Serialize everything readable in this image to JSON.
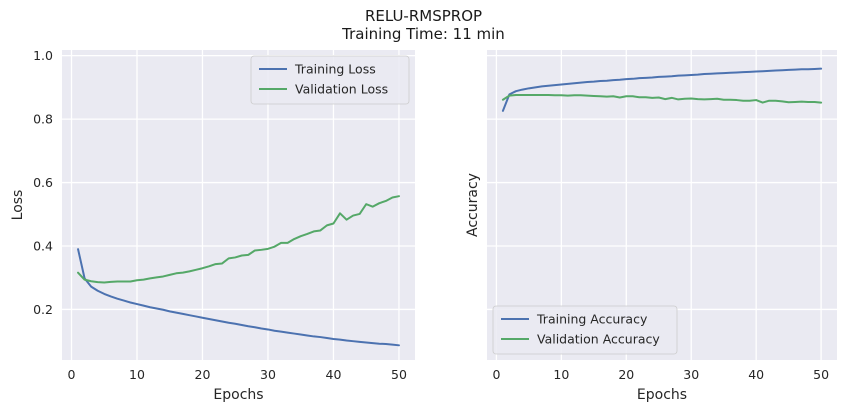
{
  "figure": {
    "title": "RELU-RMSPROP",
    "subtitle": "Training Time: 11 min"
  },
  "colors": {
    "background": "#eaeaf2",
    "grid": "#ffffff",
    "training": "#4c72b0",
    "validation": "#55a868"
  },
  "chart_data": [
    {
      "type": "line",
      "xlabel": "Epochs",
      "ylabel": "Loss",
      "xlim": [
        -1.45,
        52.45
      ],
      "ylim": [
        0.0407,
        1.0178
      ],
      "xticks": [
        0,
        10,
        20,
        30,
        40,
        50
      ],
      "yticks": [
        0.2,
        0.4,
        0.6,
        0.8,
        1.0
      ],
      "ytick_labels": [
        "0.2",
        "0.4",
        "0.6",
        "0.8",
        "1.0"
      ],
      "grid": true,
      "legend": "upper right",
      "x": [
        1,
        2,
        3,
        4,
        5,
        6,
        7,
        8,
        9,
        10,
        11,
        12,
        13,
        14,
        15,
        16,
        17,
        18,
        19,
        20,
        21,
        22,
        23,
        24,
        25,
        26,
        27,
        28,
        29,
        30,
        31,
        32,
        33,
        34,
        35,
        36,
        37,
        38,
        39,
        40,
        41,
        42,
        43,
        44,
        45,
        46,
        47,
        48,
        49,
        50
      ],
      "series": [
        {
          "name": "Training Loss",
          "color": "#4c72b0",
          "values": [
            0.39,
            0.298,
            0.272,
            0.259,
            0.249,
            0.241,
            0.234,
            0.228,
            0.222,
            0.217,
            0.212,
            0.207,
            0.203,
            0.199,
            0.194,
            0.19,
            0.186,
            0.182,
            0.178,
            0.174,
            0.17,
            0.166,
            0.162,
            0.158,
            0.155,
            0.151,
            0.147,
            0.144,
            0.14,
            0.137,
            0.133,
            0.13,
            0.127,
            0.124,
            0.121,
            0.118,
            0.115,
            0.113,
            0.11,
            0.107,
            0.105,
            0.102,
            0.1,
            0.098,
            0.096,
            0.094,
            0.092,
            0.091,
            0.089,
            0.087
          ]
        },
        {
          "name": "Validation Loss",
          "color": "#55a868",
          "values": [
            0.316,
            0.294,
            0.289,
            0.286,
            0.285,
            0.287,
            0.288,
            0.288,
            0.288,
            0.292,
            0.294,
            0.298,
            0.301,
            0.304,
            0.309,
            0.314,
            0.316,
            0.32,
            0.325,
            0.33,
            0.336,
            0.343,
            0.345,
            0.361,
            0.364,
            0.37,
            0.372,
            0.386,
            0.388,
            0.391,
            0.398,
            0.41,
            0.41,
            0.422,
            0.431,
            0.438,
            0.446,
            0.449,
            0.465,
            0.471,
            0.503,
            0.483,
            0.496,
            0.501,
            0.532,
            0.524,
            0.535,
            0.542,
            0.553,
            0.557
          ]
        }
      ]
    },
    {
      "type": "line",
      "xlabel": "Epochs",
      "ylabel": "Accuracy",
      "xlim": [
        -1.45,
        52.45
      ],
      "ylim": [
        0.0407,
        1.0178
      ],
      "xticks": [
        0,
        10,
        20,
        30,
        40,
        50
      ],
      "yticks": [
        0.2,
        0.4,
        0.6,
        0.8,
        1.0
      ],
      "ytick_labels": [],
      "grid": true,
      "legend": "lower left",
      "x": [
        1,
        2,
        3,
        4,
        5,
        6,
        7,
        8,
        9,
        10,
        11,
        12,
        13,
        14,
        15,
        16,
        17,
        18,
        19,
        20,
        21,
        22,
        23,
        24,
        25,
        26,
        27,
        28,
        29,
        30,
        31,
        32,
        33,
        34,
        35,
        36,
        37,
        38,
        39,
        40,
        41,
        42,
        43,
        44,
        45,
        46,
        47,
        48,
        49,
        50
      ],
      "series": [
        {
          "name": "Training Accuracy",
          "color": "#4c72b0",
          "values": [
            0.826,
            0.878,
            0.888,
            0.893,
            0.897,
            0.9,
            0.903,
            0.905,
            0.907,
            0.909,
            0.911,
            0.913,
            0.915,
            0.917,
            0.918,
            0.92,
            0.921,
            0.923,
            0.924,
            0.926,
            0.927,
            0.929,
            0.93,
            0.931,
            0.933,
            0.934,
            0.935,
            0.937,
            0.938,
            0.939,
            0.94,
            0.942,
            0.943,
            0.944,
            0.945,
            0.946,
            0.947,
            0.948,
            0.949,
            0.95,
            0.951,
            0.952,
            0.953,
            0.954,
            0.955,
            0.956,
            0.957,
            0.957,
            0.958,
            0.959
          ]
        },
        {
          "name": "Validation Accuracy",
          "color": "#55a868",
          "values": [
            0.861,
            0.874,
            0.876,
            0.876,
            0.876,
            0.876,
            0.876,
            0.876,
            0.875,
            0.875,
            0.874,
            0.875,
            0.875,
            0.874,
            0.873,
            0.872,
            0.871,
            0.872,
            0.868,
            0.872,
            0.872,
            0.869,
            0.869,
            0.867,
            0.868,
            0.863,
            0.867,
            0.862,
            0.864,
            0.865,
            0.863,
            0.862,
            0.863,
            0.864,
            0.861,
            0.861,
            0.86,
            0.858,
            0.858,
            0.86,
            0.852,
            0.858,
            0.858,
            0.856,
            0.853,
            0.854,
            0.855,
            0.854,
            0.854,
            0.852
          ]
        }
      ]
    }
  ]
}
